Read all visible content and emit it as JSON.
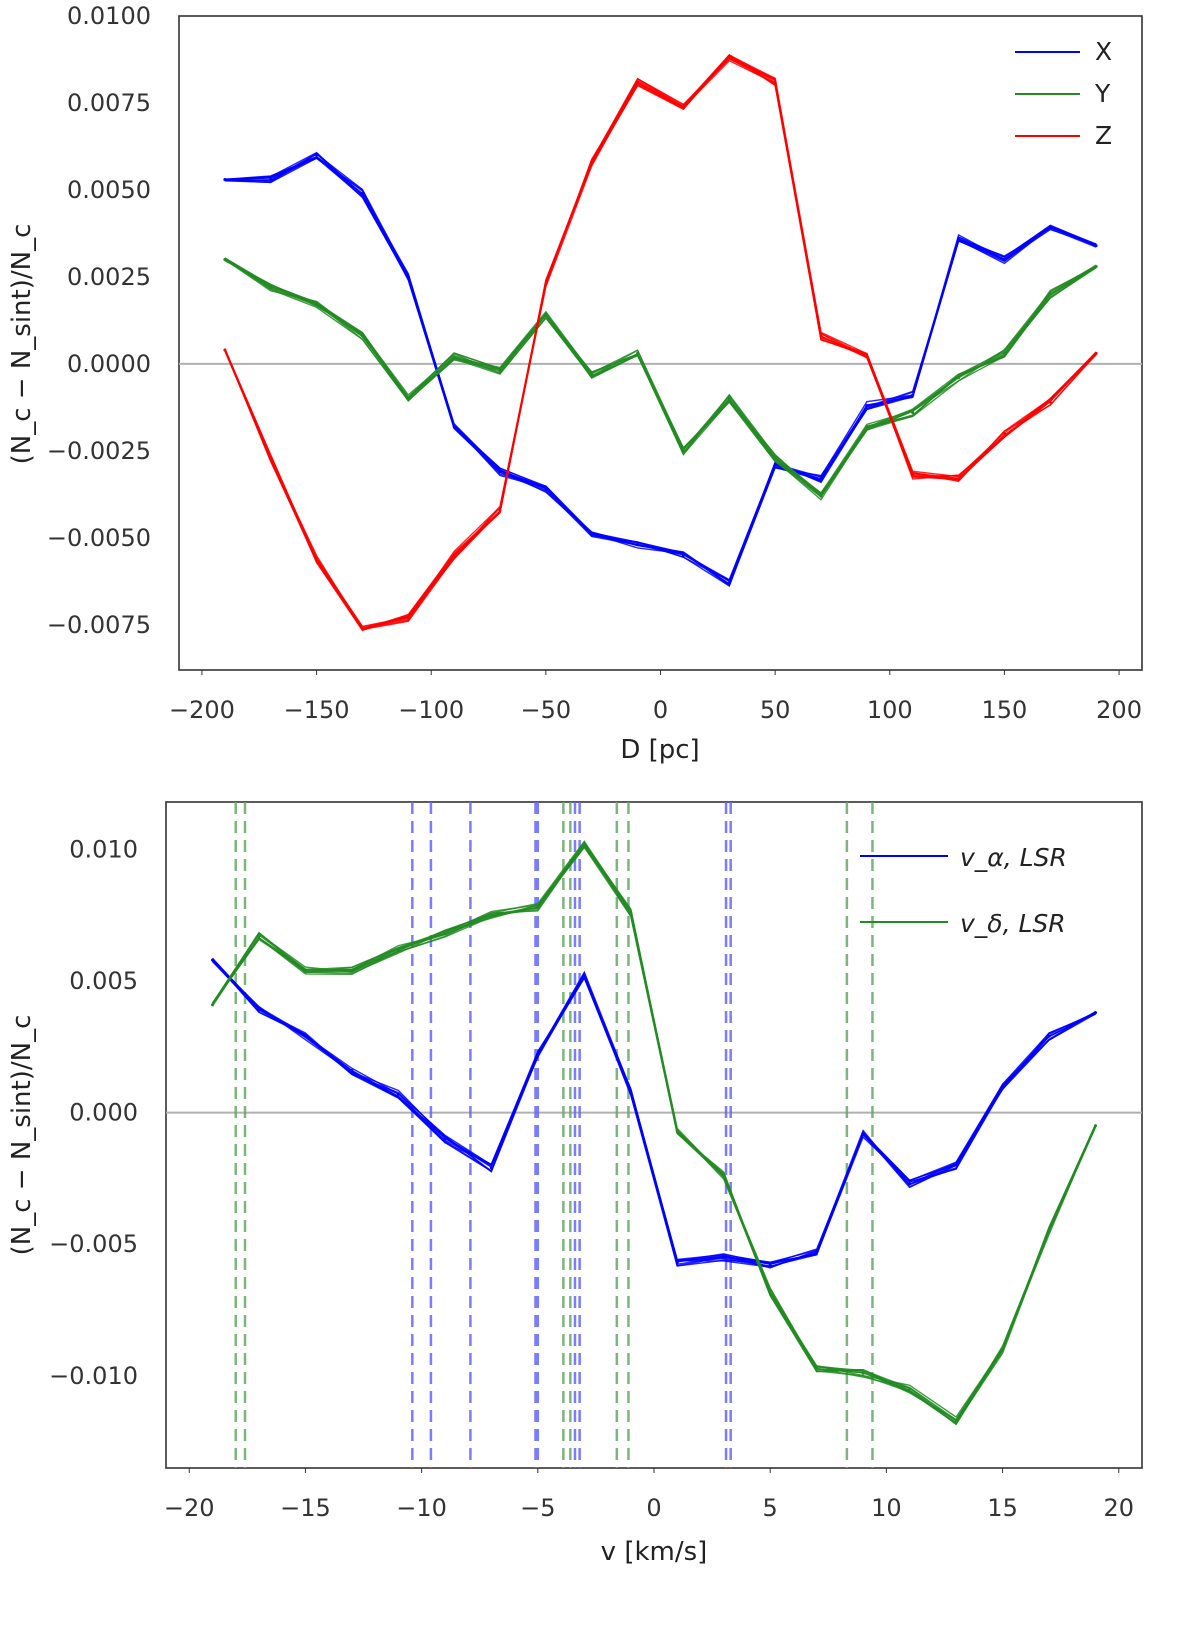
{
  "chart_data": [
    {
      "type": "line",
      "title": "",
      "xlabel": "D [pc]",
      "ylabel": "(N_c − N_sint)/N_c",
      "xlim": [
        -210,
        210
      ],
      "ylim": [
        -0.0088,
        0.01
      ],
      "xticks": [
        -200,
        -150,
        -100,
        -50,
        0,
        50,
        100,
        150,
        200
      ],
      "xtick_labels": [
        "−200",
        "−150",
        "−100",
        "−50",
        "0",
        "50",
        "100",
        "150",
        "200"
      ],
      "yticks": [
        -0.0075,
        -0.005,
        -0.0025,
        0.0,
        0.0025,
        0.005,
        0.0075,
        0.01
      ],
      "ytick_labels": [
        "−0.0075",
        "−0.0050",
        "−0.0025",
        "0.0000",
        "0.0025",
        "0.0050",
        "0.0075",
        "0.0100"
      ],
      "hline": 0.0,
      "realizations_per_series": 10,
      "legend": {
        "position": "top-right",
        "entries": [
          "X",
          "Y",
          "Z"
        ]
      },
      "x": [
        -190,
        -170,
        -150,
        -130,
        -110,
        -90,
        -70,
        -50,
        -30,
        -10,
        10,
        30,
        50,
        70,
        90,
        110,
        130,
        150,
        170,
        190
      ],
      "series": [
        {
          "name": "X",
          "color": "#0000ff",
          "values": [
            0.0053,
            0.0053,
            0.006,
            0.0049,
            0.0025,
            -0.0018,
            -0.0031,
            -0.0036,
            -0.0049,
            -0.0052,
            -0.0055,
            -0.0063,
            -0.0029,
            -0.0033,
            -0.0012,
            -0.0009,
            0.0036,
            0.003,
            0.0039,
            0.0034
          ]
        },
        {
          "name": "Y",
          "color": "#228b22",
          "values": [
            0.003,
            0.0022,
            0.0017,
            0.0008,
            -0.001,
            0.0002,
            -0.0002,
            0.0014,
            -0.0003,
            0.0003,
            -0.0025,
            -0.001,
            -0.0027,
            -0.0038,
            -0.0018,
            -0.0014,
            -0.0004,
            0.0003,
            0.002,
            0.0028
          ]
        },
        {
          "name": "Z",
          "color": "#ff0000",
          "values": [
            0.0004,
            -0.0027,
            -0.0056,
            -0.0076,
            -0.0073,
            -0.0055,
            -0.0042,
            0.0023,
            0.0058,
            0.0081,
            0.0074,
            0.0088,
            0.0081,
            0.0008,
            0.0002,
            -0.0032,
            -0.0033,
            -0.002,
            -0.0011,
            0.0003
          ]
        }
      ]
    },
    {
      "type": "line",
      "title": "",
      "xlabel": "v [km/s]",
      "ylabel": "(N_c − N_sint)/N_c",
      "xlim": [
        -21,
        21
      ],
      "ylim": [
        -0.0135,
        0.0118
      ],
      "xticks": [
        -20,
        -15,
        -10,
        -5,
        0,
        5,
        10,
        15,
        20
      ],
      "xtick_labels": [
        "−20",
        "−15",
        "−10",
        "−5",
        "0",
        "5",
        "10",
        "15",
        "20"
      ],
      "yticks": [
        -0.01,
        -0.005,
        0.0,
        0.005,
        0.01
      ],
      "ytick_labels": [
        "−0.010",
        "−0.005",
        "0.000",
        "0.005",
        "0.010"
      ],
      "hline": 0.0,
      "realizations_per_series": 10,
      "legend": {
        "position": "top-right",
        "entries": [
          "v_α, LSR",
          "v_δ, LSR"
        ]
      },
      "vlines": [
        {
          "x": -18.0,
          "color": "#66aa66"
        },
        {
          "x": -17.6,
          "color": "#66aa66"
        },
        {
          "x": -10.4,
          "color": "#6666ff"
        },
        {
          "x": -9.6,
          "color": "#6666ff"
        },
        {
          "x": -7.9,
          "color": "#6666ff"
        },
        {
          "x": -5.1,
          "color": "#6666ff"
        },
        {
          "x": -5.0,
          "color": "#6666ff"
        },
        {
          "x": -3.9,
          "color": "#66aa66"
        },
        {
          "x": -3.6,
          "color": "#66aa66"
        },
        {
          "x": -3.4,
          "color": "#6666ff"
        },
        {
          "x": -3.2,
          "color": "#6666ff"
        },
        {
          "x": -1.6,
          "color": "#66aa66"
        },
        {
          "x": -1.1,
          "color": "#66aa66"
        },
        {
          "x": 3.1,
          "color": "#6666ff"
        },
        {
          "x": 3.3,
          "color": "#6666ff"
        },
        {
          "x": 8.3,
          "color": "#66aa66"
        },
        {
          "x": 9.4,
          "color": "#66aa66"
        }
      ],
      "x": [
        -19,
        -17,
        -15,
        -13,
        -11,
        -9,
        -7,
        -5,
        -3,
        -1,
        1,
        3,
        5,
        7,
        9,
        11,
        13,
        15,
        17,
        19
      ],
      "series": [
        {
          "name": "v_α, LSR",
          "color": "#0000ff",
          "values": [
            0.0058,
            0.0039,
            0.0029,
            0.0016,
            0.0007,
            -0.001,
            -0.0021,
            0.0022,
            0.0052,
            0.0008,
            -0.0057,
            -0.0055,
            -0.0058,
            -0.0053,
            -0.0008,
            -0.0027,
            -0.002,
            0.001,
            0.0029,
            0.0038
          ]
        },
        {
          "name": "v_δ, LSR",
          "color": "#228b22",
          "values": [
            0.0041,
            0.0067,
            0.0054,
            0.0054,
            0.0062,
            0.0068,
            0.0075,
            0.0078,
            0.0102,
            0.0076,
            -0.0007,
            -0.0024,
            -0.0068,
            -0.0097,
            -0.0099,
            -0.0105,
            -0.0117,
            -0.009,
            -0.0045,
            -0.0005
          ]
        }
      ]
    }
  ]
}
